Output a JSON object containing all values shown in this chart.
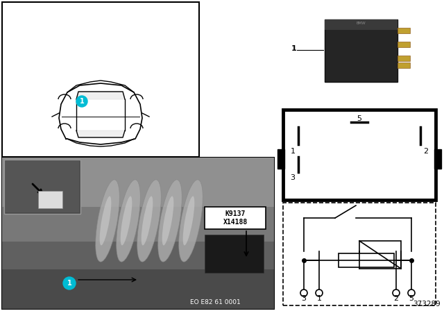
{
  "bg_color": "#ffffff",
  "label1_color": "#00bcd4",
  "k9137_text": "K9137",
  "x14188_text": "X14188",
  "eo_text": "EO E82 61 0001",
  "ref_text": "373289",
  "photo_bg": "#787878",
  "photo_dark": "#4a4a4a",
  "photo_mid": "#606060",
  "photo_light": "#909090",
  "inset_bg": "#555555",
  "relay_body_color": "#2a2a2a",
  "relay_pin_color": "#b8902a"
}
